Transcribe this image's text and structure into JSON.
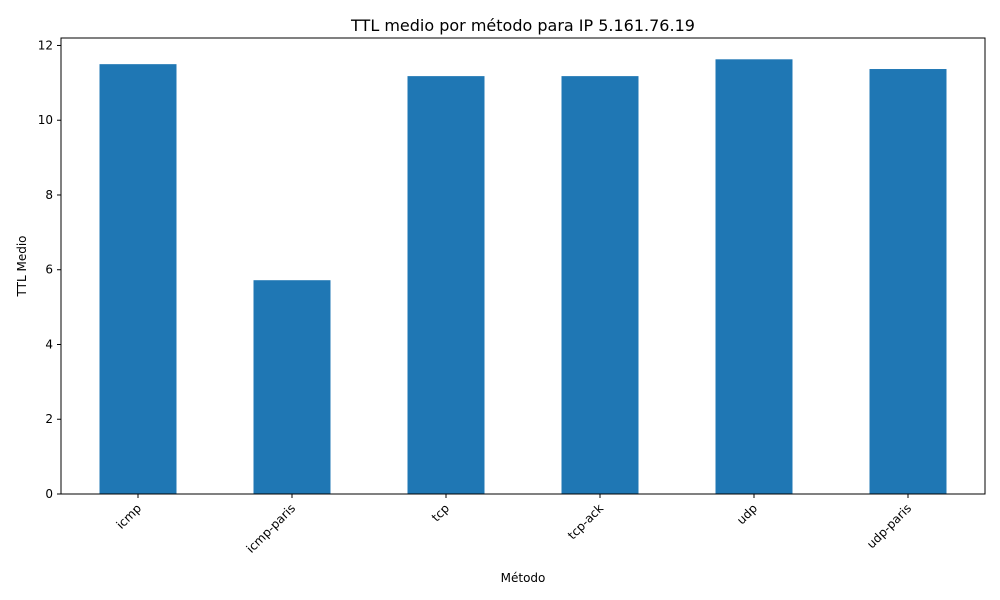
{
  "chart_data": {
    "type": "bar",
    "title": "TTL medio por método para IP 5.161.76.19",
    "xlabel": "Método",
    "ylabel": "TTL Medio",
    "categories": [
      "icmp",
      "icmp-paris",
      "tcp",
      "tcp-ack",
      "udp",
      "udp-paris"
    ],
    "values": [
      11.5,
      5.72,
      11.18,
      11.18,
      11.63,
      11.37
    ],
    "ylim": [
      0,
      12.2
    ],
    "yticks": [
      0,
      2,
      4,
      6,
      8,
      10,
      12
    ],
    "grid": false,
    "bar_color": "#1f77b4"
  }
}
